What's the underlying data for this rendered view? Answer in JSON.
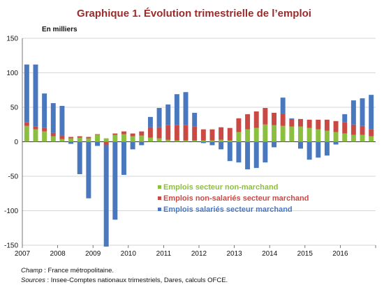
{
  "chart_data": {
    "type": "bar",
    "stacked": true,
    "title": "Graphique 1. Évolution trimestrielle de l’emploi",
    "unit_label": "En milliers",
    "ylim": [
      -150,
      150
    ],
    "yticks": [
      150,
      100,
      50,
      0,
      -50,
      -100,
      -150
    ],
    "xticklabels": [
      "2007",
      "2008",
      "2009",
      "2010",
      "2011",
      "2012",
      "2013",
      "2014",
      "2015",
      "2016"
    ],
    "grid": true,
    "categories": [
      "2007T1",
      "2007T2",
      "2007T3",
      "2007T4",
      "2008T1",
      "2008T2",
      "2008T3",
      "2008T4",
      "2009T1",
      "2009T2",
      "2009T3",
      "2009T4",
      "2010T1",
      "2010T2",
      "2010T3",
      "2010T4",
      "2011T1",
      "2011T2",
      "2011T3",
      "2011T4",
      "2012T1",
      "2012T2",
      "2012T3",
      "2012T4",
      "2013T1",
      "2013T2",
      "2013T3",
      "2013T4",
      "2014T1",
      "2014T2",
      "2014T3",
      "2014T4",
      "2015T1",
      "2015T2",
      "2015T3",
      "2015T4",
      "2016T1",
      "2016T2",
      "2016T3",
      "2016T4"
    ],
    "series": [
      {
        "name": "Emplois secteur non-marchand",
        "color": "#8cbf3f",
        "values": [
          23,
          18,
          15,
          8,
          4,
          5,
          6,
          5,
          10,
          5,
          10,
          11,
          8,
          9,
          6,
          5,
          3,
          2,
          2,
          2,
          2,
          2,
          3,
          2,
          14,
          18,
          20,
          25,
          24,
          23,
          22,
          22,
          20,
          18,
          16,
          14,
          12,
          10,
          10,
          8
        ]
      },
      {
        "name": "Emplois non-salariés secteur marchand",
        "color": "#c94a45",
        "values": [
          5,
          4,
          5,
          5,
          5,
          2,
          2,
          2,
          1,
          -5,
          2,
          4,
          4,
          6,
          15,
          16,
          21,
          22,
          22,
          20,
          16,
          16,
          18,
          18,
          20,
          22,
          24,
          24,
          18,
          18,
          11,
          11,
          12,
          14,
          16,
          16,
          16,
          15,
          13,
          10
        ]
      },
      {
        "name": "Emplois salariés secteur marchand",
        "color": "#4a78bf",
        "values": [
          84,
          90,
          50,
          43,
          43,
          -3,
          -47,
          -82,
          -6,
          -147,
          -113,
          -48,
          -11,
          -5,
          15,
          28,
          30,
          45,
          48,
          20,
          -2,
          -5,
          -11,
          -28,
          -30,
          -40,
          -38,
          -30,
          -8,
          23,
          1,
          -10,
          -26,
          -23,
          -20,
          -4,
          12,
          35,
          40,
          50
        ]
      }
    ]
  },
  "notes": {
    "champ_label": "Champ",
    "champ_text": " : France métropolitaine.",
    "sources_label": "Sources",
    "sources_text": " : Insee-Comptes nationaux trimestriels, Dares, calculs OFCE."
  }
}
